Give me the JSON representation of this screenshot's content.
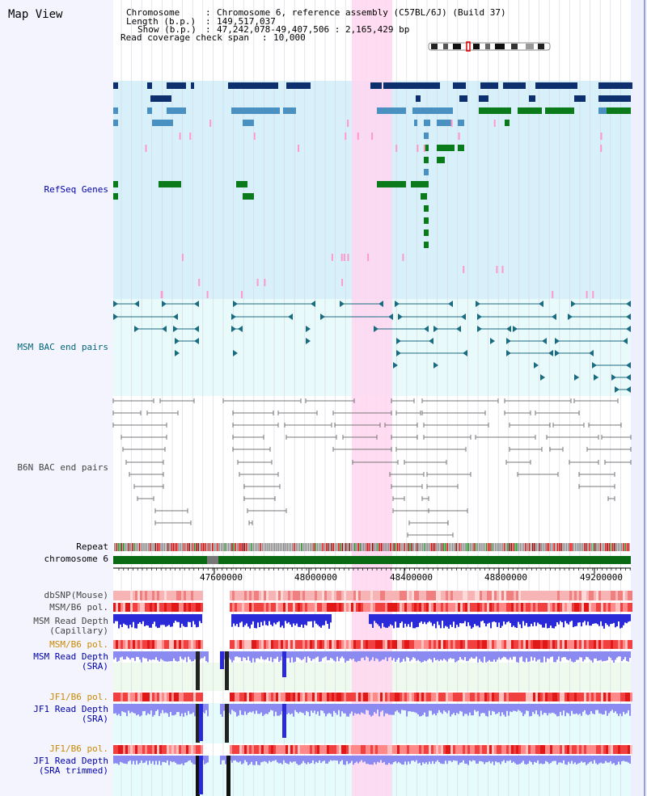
{
  "title": "Map View",
  "header": {
    "chromosome_key": "Chromosome",
    "chromosome_val": "Chromosome 6, reference assembly (C57BL/6J) (Build 37)",
    "length_key": "Length (b.p.)",
    "length_val": "149,517,037",
    "show_key": "Show (b.p.)",
    "show_val": "47,242,078-49,407,506 : 2,165,429 bp",
    "span_key": "Read coverage check span",
    "span_val": "10,000"
  },
  "tracks": {
    "refseq": "RefSeq Genes",
    "msm_bac": "MSM BAC end pairs",
    "b6n_bac": "B6N BAC end pairs",
    "repeat": "Repeat",
    "chromosome": "chromosome 6",
    "dbsnp": "dbSNP(Mouse)",
    "msm_b6_pol_1": "MSM/B6 pol.",
    "msm_read_depth_cap_1": "MSM Read Depth",
    "msm_read_depth_cap_2": "(Capillary)",
    "msm_b6_pol_2": "MSM/B6 pol.",
    "msm_read_depth_sra_1": "MSM Read Depth",
    "msm_read_depth_sra_2": "(SRA)",
    "jf1_b6_pol_1": "JF1/B6 pol.",
    "jf1_read_depth_sra_1": "JF1 Read Depth",
    "jf1_read_depth_sra_2": "(SRA)",
    "jf1_b6_pol_2": "JF1/B6 pol.",
    "jf1_read_depth_trim_1": "JF1 Read Depth",
    "jf1_read_depth_trim_2": "(SRA trimmed)"
  },
  "axis_ticks": [
    "47600000",
    "48000000",
    "48400000",
    "48800000",
    "49200000"
  ],
  "colors": {
    "refseq_bg": "#d8f0fa",
    "bac_bg": "#e8fafa",
    "highlight": "#ffd6f0",
    "dark_blue": "#0d2f6e",
    "mid_blue": "#4a90c0",
    "green": "#0a7a1a",
    "pink": "#ff99cc",
    "teal": "#1a6a80",
    "gray": "#777777",
    "depth_blue": "#2a2ad8",
    "depth_light": "#8a8af0",
    "label_blue": "#0000aa",
    "label_teal": "#006677",
    "label_orange": "#cc8800"
  }
}
